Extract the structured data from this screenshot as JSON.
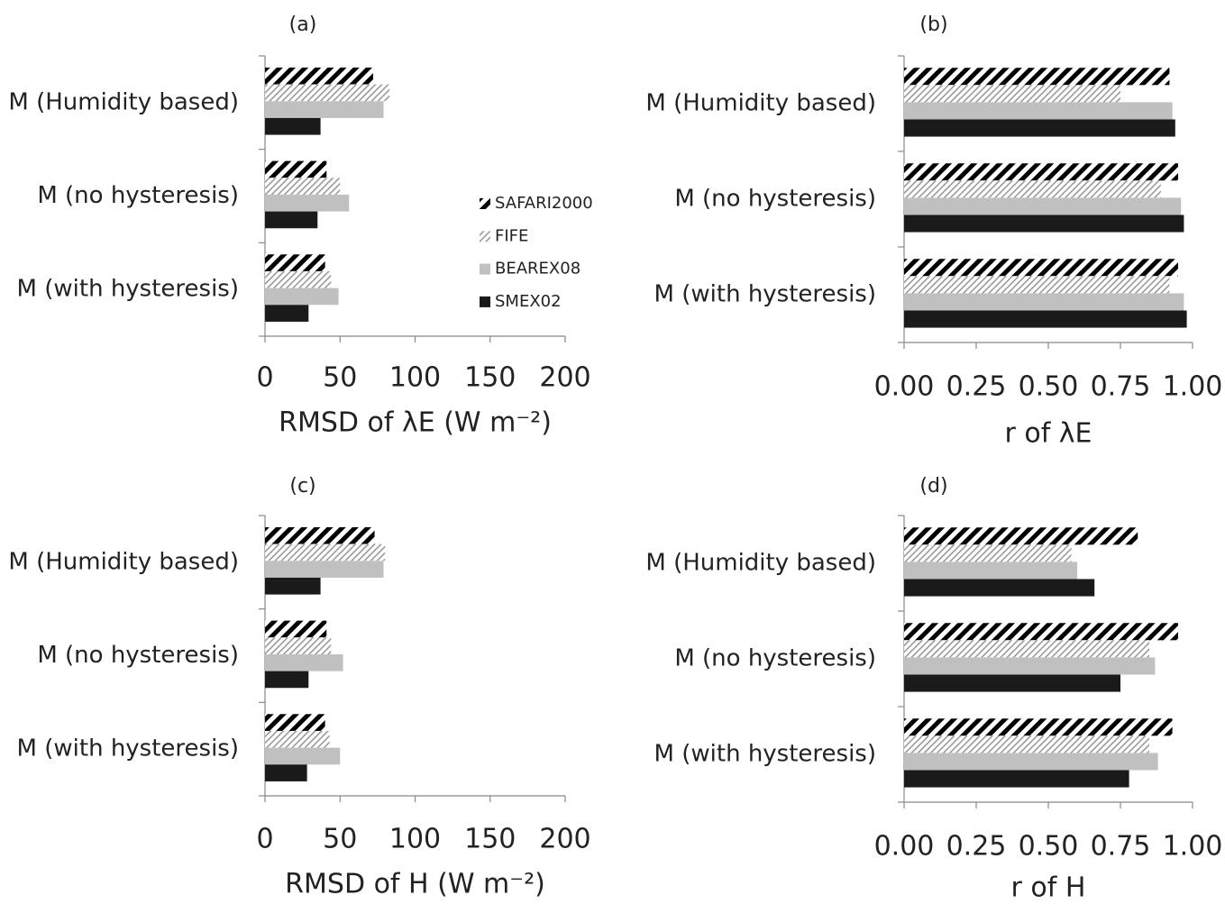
{
  "chart_data": [
    {
      "type": "bar",
      "orientation": "horizontal",
      "title": "(a)",
      "x_label": "RMSD of λE (W m⁻²)",
      "categories": [
        "M (Humidity based)",
        "M (no hysteresis)",
        "M (with hysteresis)"
      ],
      "series": [
        {
          "name": "SAFARI2000",
          "color": "#000000",
          "pattern": "wide-hatch",
          "values": [
            72,
            41,
            40
          ]
        },
        {
          "name": "FIFE",
          "color": "#9a9a9a",
          "pattern": "fine-hatch",
          "values": [
            83,
            50,
            44
          ]
        },
        {
          "name": "BEAREX08",
          "color": "#c0c0c0",
          "pattern": "solid",
          "values": [
            79,
            56,
            49
          ]
        },
        {
          "name": "SMEX02",
          "color": "#1a1a1a",
          "pattern": "solid",
          "values": [
            37,
            35,
            29
          ]
        }
      ],
      "xlim": [
        0,
        200
      ],
      "xticks": [
        0,
        50,
        100,
        150,
        200
      ],
      "legend": "right"
    },
    {
      "type": "bar",
      "orientation": "horizontal",
      "title": "(b)",
      "x_label": "r of λE",
      "categories": [
        "M (Humidity based)",
        "M (no hysteresis)",
        "M (with hysteresis)"
      ],
      "series": [
        {
          "color": "#000000",
          "pattern": "wide-hatch",
          "values": [
            0.92,
            0.95,
            0.95
          ]
        },
        {
          "color": "#9a9a9a",
          "pattern": "fine-hatch",
          "values": [
            0.75,
            0.89,
            0.92
          ]
        },
        {
          "color": "#c0c0c0",
          "pattern": "solid",
          "values": [
            0.93,
            0.96,
            0.97
          ]
        },
        {
          "color": "#1a1a1a",
          "pattern": "solid",
          "values": [
            0.94,
            0.97,
            0.98
          ]
        }
      ],
      "xlim": [
        0,
        1
      ],
      "xticks": [
        {
          "value": 0,
          "label": "0.00"
        },
        {
          "value": 0.25,
          "label": "0.25"
        },
        {
          "value": 0.5,
          "label": "0.50"
        },
        {
          "value": 0.75,
          "label": "0.75"
        },
        {
          "value": 1,
          "label": "1.00"
        }
      ]
    },
    {
      "type": "bar",
      "orientation": "horizontal",
      "title": "(c)",
      "x_label": "RMSD of H (W m⁻²)",
      "categories": [
        "M (Humidity based)",
        "M (no hysteresis)",
        "M (with hysteresis)"
      ],
      "series": [
        {
          "color": "#000000",
          "pattern": "wide-hatch",
          "values": [
            73,
            41,
            40
          ]
        },
        {
          "color": "#9a9a9a",
          "pattern": "fine-hatch",
          "values": [
            80,
            44,
            43
          ]
        },
        {
          "color": "#c0c0c0",
          "pattern": "solid",
          "values": [
            79,
            52,
            50
          ]
        },
        {
          "color": "#1a1a1a",
          "pattern": "solid",
          "values": [
            37,
            29,
            28
          ]
        }
      ],
      "xlim": [
        0,
        200
      ],
      "xticks": [
        0,
        50,
        100,
        150,
        200
      ]
    },
    {
      "type": "bar",
      "orientation": "horizontal",
      "title": "(d)",
      "x_label": "r of H",
      "categories": [
        "M (Humidity based)",
        "M (no hysteresis)",
        "M (with hysteresis)"
      ],
      "series": [
        {
          "color": "#000000",
          "pattern": "wide-hatch",
          "values": [
            0.81,
            0.95,
            0.93
          ]
        },
        {
          "color": "#9a9a9a",
          "pattern": "fine-hatch",
          "values": [
            0.58,
            0.85,
            0.85
          ]
        },
        {
          "color": "#c0c0c0",
          "pattern": "solid",
          "values": [
            0.6,
            0.87,
            0.88
          ]
        },
        {
          "color": "#1a1a1a",
          "pattern": "solid",
          "values": [
            0.66,
            0.75,
            0.78
          ]
        }
      ],
      "xlim": [
        0,
        1
      ],
      "xticks": [
        {
          "value": 0,
          "label": "0.00"
        },
        {
          "value": 0.25,
          "label": "0.25"
        },
        {
          "value": 0.5,
          "label": "0.50"
        },
        {
          "value": 0.75,
          "label": "0.75"
        },
        {
          "value": 1,
          "label": "1.00"
        }
      ]
    }
  ]
}
